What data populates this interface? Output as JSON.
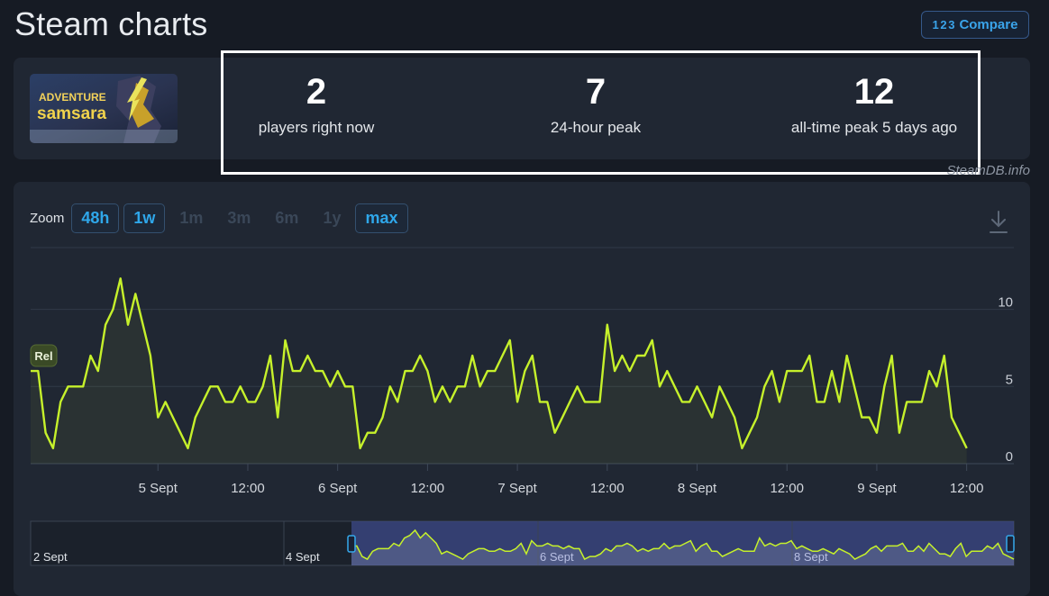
{
  "header": {
    "title": "Steam charts",
    "compare_label": "Compare",
    "compare_icon": "1 2 3"
  },
  "game": {
    "capsule_text": "ADVENTURE samsara",
    "capsule_icon": "game-capsule"
  },
  "stats": [
    {
      "value": "2",
      "label": "players right now"
    },
    {
      "value": "7",
      "label": "24-hour peak"
    },
    {
      "value": "12",
      "label": "all-time peak 5 days ago"
    }
  ],
  "credit": "SteamDB.info",
  "zoom": {
    "label": "Zoom",
    "buttons": [
      {
        "label": "48h",
        "active": true
      },
      {
        "label": "1w",
        "active": true
      },
      {
        "label": "1m",
        "active": false
      },
      {
        "label": "3m",
        "active": false
      },
      {
        "label": "6m",
        "active": false
      },
      {
        "label": "1y",
        "active": false
      },
      {
        "label": "max",
        "active": true
      }
    ]
  },
  "colors": {
    "line": "#c6f12b",
    "accent": "#2fa7ea",
    "navigator_band": "#3d4a8a"
  },
  "chart_data": {
    "type": "line",
    "title": "",
    "xlabel": "",
    "ylabel": "",
    "ylim": [
      0,
      14
    ],
    "y_ticks": [
      0,
      5,
      10
    ],
    "x_ticks": [
      {
        "t": 17,
        "label": "5 Sept"
      },
      {
        "t": 29,
        "label": "12:00"
      },
      {
        "t": 41,
        "label": "6 Sept"
      },
      {
        "t": 53,
        "label": "12:00"
      },
      {
        "t": 65,
        "label": "7 Sept"
      },
      {
        "t": 77,
        "label": "12:00"
      },
      {
        "t": 89,
        "label": "8 Sept"
      },
      {
        "t": 101,
        "label": "12:00"
      },
      {
        "t": 113,
        "label": "9 Sept"
      },
      {
        "t": 125,
        "label": "12:00"
      }
    ],
    "x_range": [
      0,
      131.3
    ],
    "annotation": {
      "label": "Rel",
      "t": 0
    },
    "series": [
      {
        "values": [
          6,
          6,
          2,
          1,
          4,
          5,
          5,
          5,
          7,
          6,
          9,
          10,
          12,
          9,
          11,
          9,
          7,
          3,
          4,
          3,
          2,
          1,
          3,
          4,
          5,
          5,
          4,
          4,
          5,
          4,
          4,
          5,
          7,
          3,
          8,
          6,
          6,
          7,
          6,
          6,
          5,
          6,
          5,
          5,
          1,
          2,
          2,
          3,
          5,
          4,
          6,
          6,
          7,
          6,
          4,
          5,
          4,
          5,
          5,
          7,
          5,
          6,
          6,
          7,
          8,
          4,
          6,
          7,
          4,
          4,
          2,
          3,
          4,
          5,
          4,
          4,
          4,
          9,
          6,
          7,
          6,
          7,
          7,
          8,
          5,
          6,
          5,
          4,
          4,
          5,
          4,
          3,
          5,
          4,
          3,
          1,
          2,
          3,
          5,
          6,
          4,
          6,
          6,
          6,
          7,
          4,
          4,
          6,
          4,
          7,
          5,
          3,
          3,
          2,
          5,
          7,
          2,
          4,
          4,
          4,
          6,
          5,
          7,
          3,
          2,
          1
        ]
      }
    ],
    "navigator": {
      "x_labels": [
        "2 Sept",
        "4 Sept",
        "6 Sept",
        "8 Sept"
      ],
      "selection": "5 Sept – 9 Sept"
    }
  }
}
